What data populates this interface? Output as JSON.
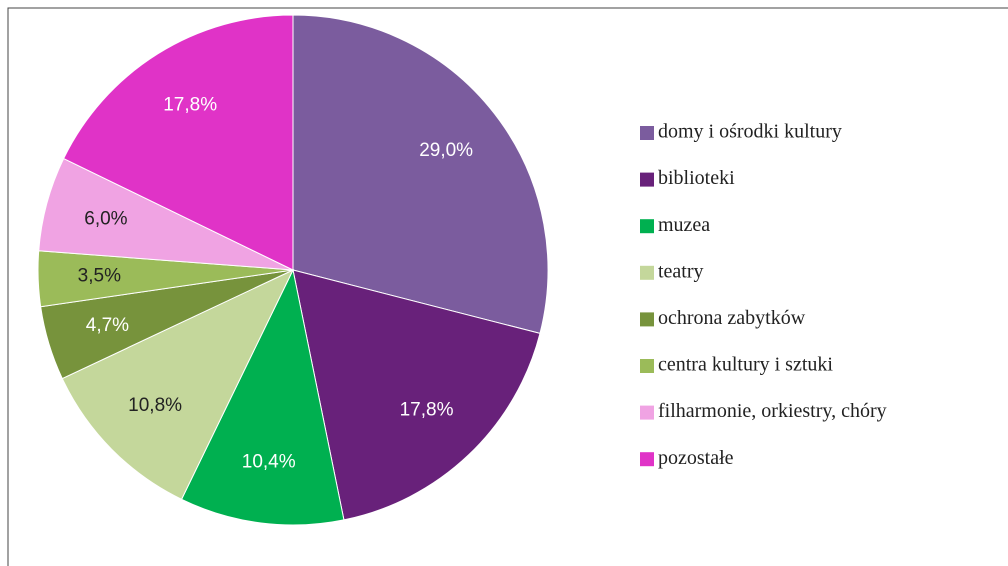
{
  "chart_data": {
    "type": "pie",
    "categories": [
      "domy i ośrodki kultury",
      "biblioteki",
      "muzea",
      "teatry",
      "ochrona zabytków",
      "centra kultury i sztuki",
      "filharmonie, orkiestry, chóry",
      "pozostałe"
    ],
    "values": [
      29.0,
      17.8,
      10.4,
      10.8,
      4.7,
      3.5,
      6.0,
      17.8
    ],
    "value_labels": [
      "29,0%",
      "17,8%",
      "10,4%",
      "10,8%",
      "4,7%",
      "3,5%",
      "6,0%",
      "17,8%"
    ],
    "colors": [
      "#7b5c9e",
      "#68217a",
      "#00b050",
      "#c4d79b",
      "#77933c",
      "#9bbb59",
      "#f0a3e3",
      "#e033c7"
    ],
    "label_colors": [
      "#ffffff",
      "#ffffff",
      "#ffffff",
      "#222222",
      "#ffffff",
      "#222222",
      "#222222",
      "#ffffff"
    ],
    "legend": "right"
  }
}
